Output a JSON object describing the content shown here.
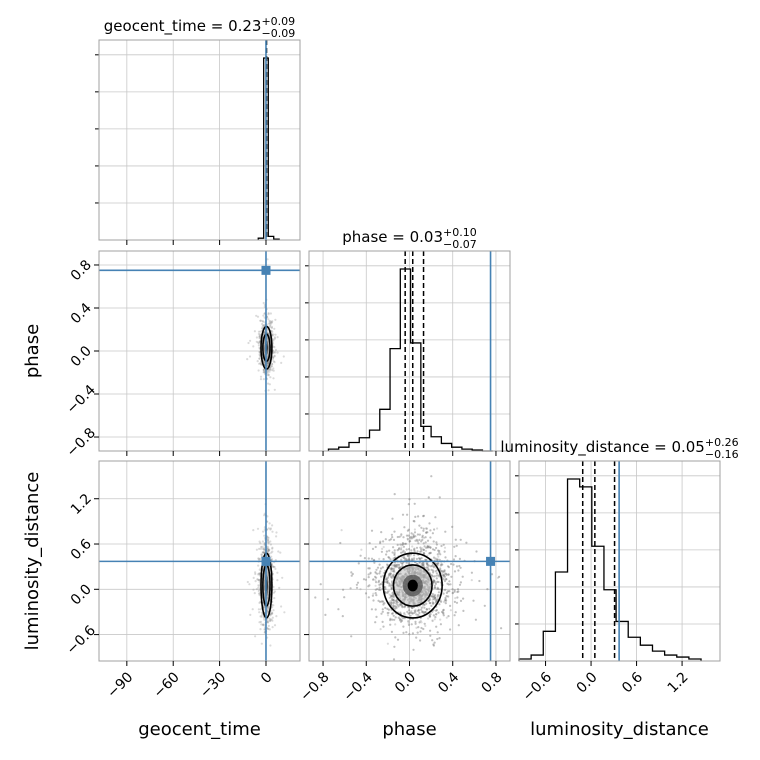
{
  "chart_data": {
    "type": "corner",
    "parameters": [
      "geocent_time",
      "phase",
      "luminosity_distance"
    ],
    "titles": [
      {
        "param": "geocent_time",
        "median": "0.23",
        "plus": "+0.09",
        "minus": "−0.09"
      },
      {
        "param": "phase",
        "median": "0.03",
        "plus": "+0.10",
        "minus": "−0.07"
      },
      {
        "param": "luminosity_distance",
        "median": "0.05",
        "plus": "+0.26",
        "minus": "−0.16"
      }
    ],
    "title_equals": " = ",
    "truth_color": "#4682b4",
    "truths": {
      "geocent_time": 0.0,
      "phase": 0.75,
      "luminosity_distance": 0.37
    },
    "ranges": {
      "geocent_time": [
        -108,
        22
      ],
      "phase": [
        -0.93,
        0.93
      ],
      "luminosity_distance": [
        -0.95,
        1.7
      ]
    },
    "x_ticks": {
      "geocent_time": {
        "values": [
          -90,
          -60,
          -30,
          0
        ],
        "labels": [
          "−90",
          "−60",
          "−30",
          "0"
        ]
      },
      "phase": {
        "values": [
          -0.8,
          -0.4,
          0.0,
          0.4,
          0.8
        ],
        "labels": [
          "−0.8",
          "−0.4",
          "0.0",
          "0.4",
          "0.8"
        ]
      },
      "luminosity_distance": {
        "values": [
          -0.6,
          0.0,
          0.6,
          1.2
        ],
        "labels": [
          "−0.6",
          "0.0",
          "0.6",
          "1.2"
        ]
      }
    },
    "y_ticks": {
      "phase": {
        "values": [
          0.8,
          0.4,
          0.0,
          -0.4,
          -0.8
        ],
        "labels": [
          "0.8",
          "0.4",
          "0.0",
          "−0.4",
          "−0.8"
        ]
      },
      "luminosity_distance": {
        "values": [
          1.2,
          0.6,
          0.0,
          -0.6
        ],
        "labels": [
          "1.2",
          "0.6",
          "0.0",
          "−0.6"
        ]
      }
    },
    "histograms": {
      "geocent_time": {
        "edges": [
          -5.0,
          -1.5,
          1.5,
          5.0,
          8.5
        ],
        "counts": [
          0.01,
          1.0,
          0.02,
          0.005
        ],
        "quantiles": [
          0.14,
          0.23,
          0.32
        ]
      },
      "phase": {
        "edges": [
          -0.75,
          -0.655,
          -0.56,
          -0.465,
          -0.37,
          -0.275,
          -0.18,
          -0.085,
          0.01,
          0.105,
          0.2,
          0.295,
          0.39,
          0.485,
          0.58,
          0.675,
          0.77
        ],
        "counts": [
          0.01,
          0.02,
          0.045,
          0.07,
          0.11,
          0.22,
          0.54,
          0.96,
          0.57,
          0.13,
          0.075,
          0.04,
          0.02,
          0.01,
          0.005,
          0.0
        ],
        "quantiles": [
          -0.04,
          0.03,
          0.13
        ]
      },
      "luminosity_distance": {
        "edges": [
          -0.95,
          -0.79,
          -0.63,
          -0.47,
          -0.31,
          -0.15,
          0.01,
          0.17,
          0.33,
          0.49,
          0.65,
          0.81,
          0.97,
          1.13,
          1.29,
          1.45
        ],
        "counts": [
          0.01,
          0.03,
          0.15,
          0.45,
          0.92,
          0.88,
          0.58,
          0.36,
          0.2,
          0.12,
          0.08,
          0.05,
          0.03,
          0.02,
          0.01
        ],
        "quantiles": [
          -0.11,
          0.05,
          0.31
        ]
      }
    }
  }
}
